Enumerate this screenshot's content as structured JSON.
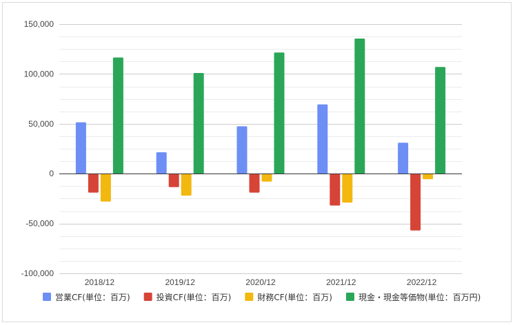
{
  "chart_data": {
    "type": "bar",
    "title": "",
    "xlabel": "",
    "ylabel": "",
    "categories": [
      "2018/12",
      "2019/12",
      "2020/12",
      "2021/12",
      "2022/12"
    ],
    "ylim": [
      -100000,
      150000
    ],
    "yticks": [
      150000,
      100000,
      50000,
      0,
      -50000,
      -100000
    ],
    "ytick_labels": [
      "150,000",
      "100,000",
      "50,000",
      "0",
      "-50,000",
      "-100,000"
    ],
    "grid": true,
    "minor_grid": true,
    "legend_position": "bottom",
    "series": [
      {
        "name": "営業CF(単位：百万)",
        "color": "#6d8ef5",
        "values": [
          51500,
          21500,
          47500,
          69500,
          31000
        ]
      },
      {
        "name": "投資CF(単位：百万)",
        "color": "#d64437",
        "values": [
          -19000,
          -13500,
          -19000,
          -32000,
          -57000
        ]
      },
      {
        "name": "財務CF(単位：百万)",
        "color": "#f2b80f",
        "values": [
          -28000,
          -22000,
          -8000,
          -29000,
          -5500
        ]
      },
      {
        "name": "現金・現金等価物(単位：百万円)",
        "color": "#2ba659",
        "values": [
          116500,
          101000,
          121500,
          135500,
          107000
        ]
      }
    ]
  }
}
